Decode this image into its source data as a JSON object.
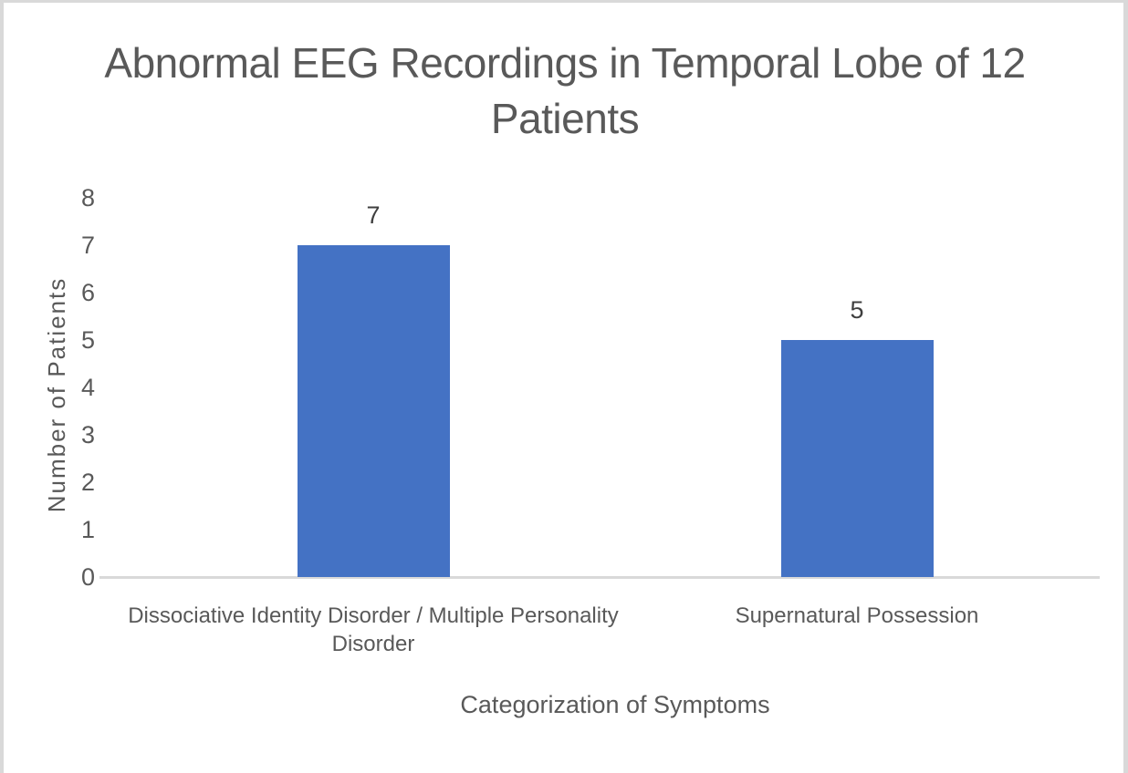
{
  "chart_data": {
    "type": "bar",
    "title": "Abnormal EEG Recordings in Temporal Lobe of 12 Patients",
    "categories": [
      "Dissociative Identity Disorder / Multiple Personality Disorder",
      "Supernatural Possession"
    ],
    "values": [
      7,
      5
    ],
    "data_labels": [
      "7",
      "5"
    ],
    "xlabel": "Categorization of Symptoms",
    "ylabel": "Number of Patients",
    "ylim": [
      0,
      8
    ],
    "yticks": [
      0,
      1,
      2,
      3,
      4,
      5,
      6,
      7,
      8
    ],
    "grid": false,
    "legend": "none",
    "colors": {
      "bar": "#4472C4",
      "axis_line": "#D9D9D9",
      "title_text": "#595959",
      "axis_text": "#595959",
      "data_label_text": "#3F3F3F",
      "frame_border": "#D9D9D9",
      "background": "#FFFFFF"
    }
  }
}
